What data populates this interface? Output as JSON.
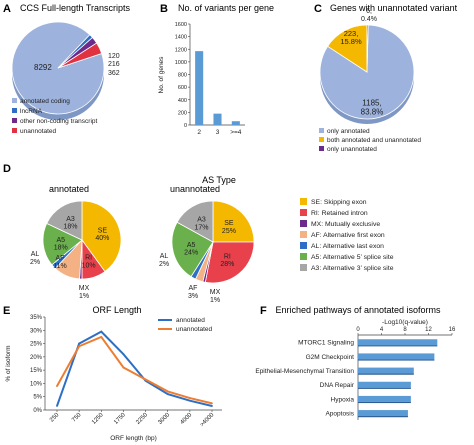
{
  "panels": {
    "a": {
      "label": "A",
      "chart_data": {
        "type": "pie",
        "title": "CCS Full-length Transcripts",
        "slices": [
          {
            "label": "annotated coding",
            "value": 8292,
            "color": "#9db3dd"
          },
          {
            "label": "lncRNA",
            "value": 120,
            "color": "#2e6fc5"
          },
          {
            "label": "other non-coding transcript",
            "value": 216,
            "color": "#6d2a8a"
          },
          {
            "label": "unannotated",
            "value": 362,
            "color": "#e03241"
          }
        ]
      }
    },
    "b": {
      "label": "B",
      "chart_data": {
        "type": "bar",
        "title": "No. of variants per gene",
        "categories": [
          "2",
          "3",
          ">=4"
        ],
        "values": [
          1170,
          180,
          60
        ],
        "ylabel": "No. of genes",
        "ylim": [
          0,
          1600
        ],
        "yticks": [
          "0",
          "200",
          "400",
          "600",
          "800",
          "1000",
          "1200",
          "1400",
          "1600"
        ],
        "color": "#5b9bd5"
      }
    },
    "c": {
      "label": "C",
      "chart_data": {
        "type": "pie",
        "title": "Genes with unannotated variant",
        "slices": [
          {
            "label": "only annotated",
            "value": 1185,
            "text": "1185,",
            "pct": "83.8%",
            "color": "#9db3dd"
          },
          {
            "label": "both annotated and unannotated",
            "value": 223,
            "text": "223,",
            "pct": "15.8%",
            "color": "#f5b800"
          },
          {
            "label": "only unannotated",
            "value": 6,
            "text": "6,",
            "pct": "0.4%",
            "color": "#6d2a8a"
          }
        ]
      }
    },
    "d": {
      "label": "D",
      "title": "AS Type",
      "chart_data": [
        {
          "type": "pie",
          "title": "annotated",
          "slices": [
            {
              "key": "SE",
              "pct": 40,
              "label": "SE\n40%"
            },
            {
              "key": "RI",
              "pct": 10,
              "label": "RI\n10%"
            },
            {
              "key": "MX",
              "pct": 1,
              "label": "MX\n1%"
            },
            {
              "key": "AF",
              "pct": 11,
              "label": "AF\n11%"
            },
            {
              "key": "AL",
              "pct": 2,
              "label": "AL\n2%"
            },
            {
              "key": "A5",
              "pct": 18,
              "label": "A5\n18%"
            },
            {
              "key": "A3",
              "pct": 18,
              "label": "A3\n18%"
            }
          ]
        },
        {
          "type": "pie",
          "title": "unannotated",
          "slices": [
            {
              "key": "SE",
              "pct": 25,
              "label": "SE\n25%"
            },
            {
              "key": "RI",
              "pct": 28,
              "label": "RI\n28%"
            },
            {
              "key": "MX",
              "pct": 1,
              "label": "MX\n1%"
            },
            {
              "key": "AF",
              "pct": 3,
              "label": "AF\n3%"
            },
            {
              "key": "AL",
              "pct": 2,
              "label": "AL\n2%"
            },
            {
              "key": "A5",
              "pct": 24,
              "label": "A5\n24%"
            },
            {
              "key": "A3",
              "pct": 17,
              "label": "A3\n17%"
            }
          ]
        }
      ],
      "legend": [
        {
          "key": "SE",
          "label": "SE: Skipping exon",
          "color": "#f5b800"
        },
        {
          "key": "RI",
          "label": "RI: Retained intron",
          "color": "#e8414c"
        },
        {
          "key": "MX",
          "label": "MX: Mutually exclusive",
          "color": "#6d2a8a"
        },
        {
          "key": "AF",
          "label": "AF: Alternative first exon",
          "color": "#f4b183"
        },
        {
          "key": "AL",
          "label": "AL: Alternative last exon",
          "color": "#2e6fc5"
        },
        {
          "key": "A5",
          "label": "A5: Alternative 5’ splice site",
          "color": "#6ab04c"
        },
        {
          "key": "A3",
          "label": "A3: Alternative 3’ splice site",
          "color": "#a6a6a6"
        }
      ]
    },
    "e": {
      "label": "E",
      "chart_data": {
        "type": "line",
        "title": "ORF Length",
        "xlabel": "ORF length (bp)",
        "ylabel": "% of isoform",
        "ylim": [
          0,
          35
        ],
        "yticks": [
          "0%",
          "5%",
          "10%",
          "15%",
          "20%",
          "25%",
          "30%",
          "35%"
        ],
        "x": [
          "250",
          "750",
          "1250",
          "1750",
          "2250",
          "3000",
          "4000",
          ">4000"
        ],
        "series": [
          {
            "name": "annotated",
            "values": [
              1.5,
              25,
              29.5,
              21,
              11,
              6,
              3.5,
              1.5
            ],
            "color": "#2e6fc5"
          },
          {
            "name": "unannotated",
            "values": [
              9,
              24,
              27.5,
              16,
              11.5,
              7,
              4.5,
              2.5
            ],
            "color": "#ed7d31"
          }
        ]
      }
    },
    "f": {
      "label": "F",
      "chart_data": {
        "type": "bar",
        "orientation": "horizontal",
        "title": "Enriched pathways of annotated isoforms",
        "xlabel": "-Log10(q-value)",
        "xlim": [
          0,
          16
        ],
        "xticks": [
          "0",
          "4",
          "8",
          "12",
          "16"
        ],
        "categories": [
          "MTORC1 Signaling",
          "G2M Checkpoint",
          "Epithelial-Mesenchymal Transition",
          "DNA Repair",
          "Hypoxia",
          "Apoptosis"
        ],
        "values": [
          13.5,
          13,
          9.5,
          9,
          9,
          8.5
        ],
        "color": "#5b9bd5"
      }
    }
  }
}
